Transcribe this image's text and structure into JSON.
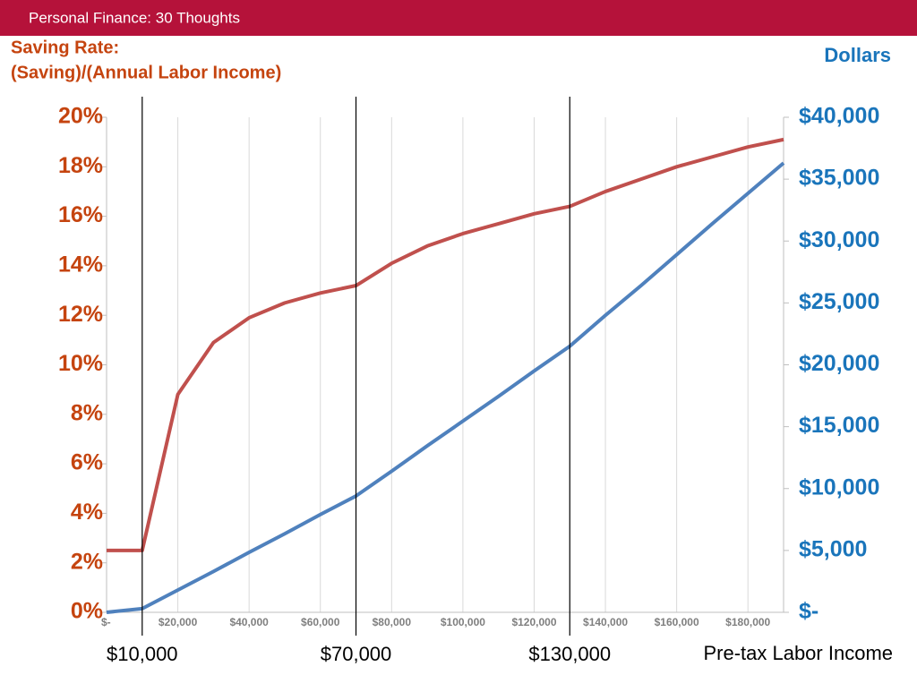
{
  "header": "Personal Finance: 30 Thoughts",
  "chart_data": {
    "type": "line",
    "ylabel": [
      "Saving Rate:",
      "(Saving)/(Annual Labor Income)"
    ],
    "y2label": "Dollars",
    "xlabel": "Pre-tax Labor Income",
    "x": [
      0,
      10000,
      20000,
      30000,
      40000,
      50000,
      60000,
      70000,
      80000,
      90000,
      100000,
      110000,
      120000,
      130000,
      140000,
      150000,
      160000,
      170000,
      180000,
      190000
    ],
    "series": [
      {
        "color": "#c0504d",
        "values": [
          2.5,
          2.5,
          8.8,
          10.9,
          11.9,
          12.5,
          12.9,
          13.2,
          14.1,
          14.8,
          15.3,
          15.7,
          16.1,
          16.4,
          17.0,
          17.5,
          18.0,
          18.4,
          18.8,
          19.1
        ]
      },
      {
        "color": "#4f81bd",
        "axis": "y2",
        "values": [
          0,
          300,
          1800,
          3300,
          4850,
          6350,
          7900,
          9400,
          11400,
          13450,
          15450,
          17450,
          19500,
          21500,
          24000,
          26400,
          28900,
          31400,
          33850,
          36300
        ]
      }
    ],
    "xlim": [
      0,
      190000
    ],
    "xticks": [
      {
        "value": 0,
        "label": "$-"
      },
      {
        "value": 20000,
        "label": "$20,000"
      },
      {
        "value": 40000,
        "label": "$40,000"
      },
      {
        "value": 60000,
        "label": "$60,000"
      },
      {
        "value": 80000,
        "label": "$80,000"
      },
      {
        "value": 100000,
        "label": "$100,000"
      },
      {
        "value": 120000,
        "label": "$120,000"
      },
      {
        "value": 140000,
        "label": "$140,000"
      },
      {
        "value": 160000,
        "label": "$160,000"
      },
      {
        "value": 180000,
        "label": "$180,000"
      }
    ],
    "ylim": [
      0,
      20
    ],
    "yticks": [
      {
        "value": 0,
        "label": "0%"
      },
      {
        "value": 2,
        "label": "2%"
      },
      {
        "value": 4,
        "label": "4%"
      },
      {
        "value": 6,
        "label": "6%"
      },
      {
        "value": 8,
        "label": "8%"
      },
      {
        "value": 10,
        "label": "10%"
      },
      {
        "value": 12,
        "label": "12%"
      },
      {
        "value": 14,
        "label": "14%"
      },
      {
        "value": 16,
        "label": "16%"
      },
      {
        "value": 18,
        "label": "18%"
      },
      {
        "value": 20,
        "label": "20%"
      }
    ],
    "y2lim": [
      0,
      40000
    ],
    "y2ticks": [
      {
        "value": 0,
        "label": "$-"
      },
      {
        "value": 5000,
        "label": "$5,000"
      },
      {
        "value": 10000,
        "label": "$10,000"
      },
      {
        "value": 15000,
        "label": "$15,000"
      },
      {
        "value": 20000,
        "label": "$20,000"
      },
      {
        "value": 25000,
        "label": "$25,000"
      },
      {
        "value": 30000,
        "label": "$30,000"
      },
      {
        "value": 35000,
        "label": "$35,000"
      },
      {
        "value": 40000,
        "label": "$40,000"
      }
    ],
    "grid": true,
    "annotations": [
      {
        "x": 10000,
        "label": "$10,000"
      },
      {
        "x": 70000,
        "label": "$70,000"
      },
      {
        "x": 130000,
        "label": "$130,000"
      }
    ]
  }
}
